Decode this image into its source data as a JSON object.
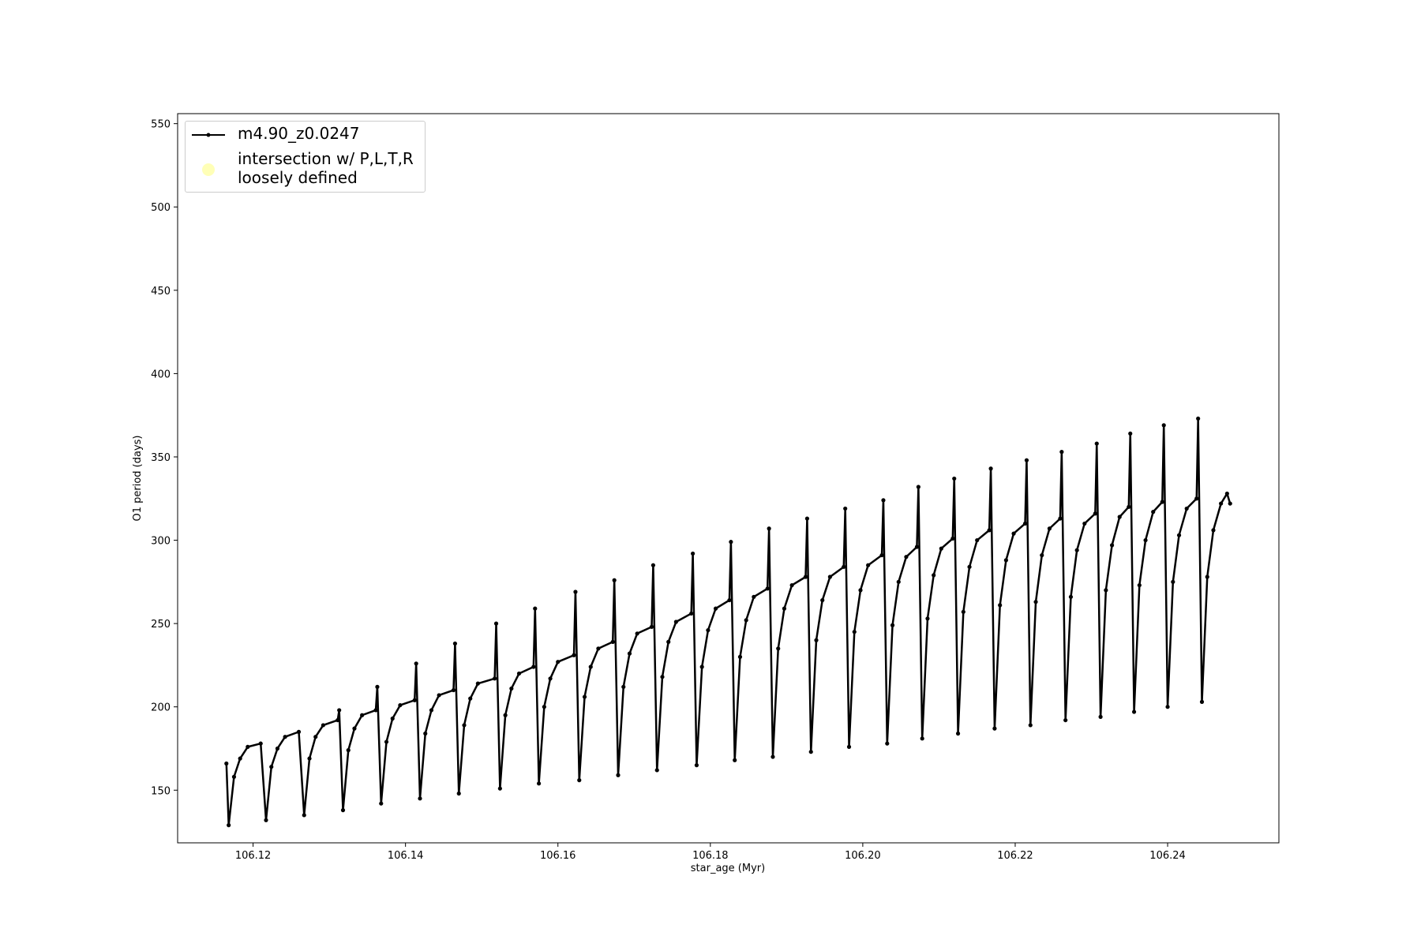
{
  "chart_data": {
    "type": "line",
    "xlabel": "star_age (Myr)",
    "ylabel": "O1 period (days)",
    "xlim": [
      106.1101,
      106.2546
    ],
    "ylim": [
      118.4,
      556
    ],
    "xticks": [
      106.12,
      106.14,
      106.16,
      106.18,
      {
        "value": 106.2,
        "label": "106.20"
      },
      106.22,
      106.24
    ],
    "yticks": [
      150,
      200,
      250,
      300,
      350,
      400,
      450,
      500,
      550
    ],
    "legend": "upper left",
    "series": [
      {
        "name": "m4.90_z0.0247",
        "color": "#000000",
        "x": [
          106.1165,
          106.1168,
          106.1175,
          106.1183,
          106.1193,
          106.121,
          106.1217,
          106.1224,
          106.1232,
          106.1242,
          106.126,
          106.1267,
          106.1274,
          106.1282,
          106.1292,
          106.1311,
          106.1313,
          106.1318,
          106.1325,
          106.1333,
          106.1343,
          106.1361,
          106.1363,
          106.1368,
          106.1375,
          106.1383,
          106.1393,
          106.1412,
          106.1414,
          106.1419,
          106.1426,
          106.1434,
          106.1444,
          106.1463,
          106.1465,
          106.147,
          106.1477,
          106.1485,
          106.1495,
          106.1517,
          106.1519,
          106.1524,
          106.1531,
          106.1539,
          106.1549,
          106.1568,
          106.157,
          106.1575,
          106.1582,
          106.159,
          106.16,
          106.1621,
          106.1623,
          106.1628,
          106.1635,
          106.1643,
          106.1653,
          106.1672,
          106.1674,
          106.1679,
          106.1686,
          106.1694,
          106.1704,
          106.1723,
          106.1725,
          106.173,
          106.1737,
          106.1745,
          106.1755,
          106.1775,
          106.1777,
          106.1782,
          106.1789,
          106.1797,
          106.1807,
          106.1825,
          106.1827,
          106.1832,
          106.1839,
          106.1847,
          106.1857,
          106.1875,
          106.1877,
          106.1882,
          106.1889,
          106.1897,
          106.1907,
          106.1925,
          106.1927,
          106.1932,
          106.1939,
          106.1947,
          106.1957,
          106.1975,
          106.1977,
          106.1982,
          106.1989,
          106.1997,
          106.2007,
          106.2025,
          106.2027,
          106.2032,
          106.2039,
          106.2047,
          106.2057,
          106.2071,
          106.2073,
          106.2078,
          106.2085,
          106.2093,
          106.2103,
          106.2118,
          106.212,
          106.2125,
          106.2132,
          106.214,
          106.215,
          106.2166,
          106.2168,
          106.2173,
          106.218,
          106.2188,
          106.2198,
          106.2213,
          106.2215,
          106.222,
          106.2227,
          106.2235,
          106.2245,
          106.2259,
          106.2261,
          106.2266,
          106.2273,
          106.2281,
          106.2291,
          106.2305,
          106.2307,
          106.2312,
          106.2319,
          106.2327,
          106.2337,
          106.2349,
          106.2351,
          106.2356,
          106.2363,
          106.2371,
          106.2381,
          106.2393,
          106.2395,
          106.24,
          106.2407,
          106.2415,
          106.2425,
          106.2438,
          106.244,
          106.2445,
          106.2452,
          106.246,
          106.247,
          106.2478,
          106.2482
        ],
        "values": [
          166,
          129,
          158,
          169,
          176,
          178,
          132,
          164,
          175,
          182,
          185,
          135,
          169,
          182,
          189,
          192,
          198,
          138,
          174,
          187,
          195,
          198,
          212,
          142,
          179,
          193,
          201,
          204,
          226,
          145,
          184,
          198,
          207,
          210,
          238,
          148,
          189,
          205,
          214,
          217,
          250,
          151,
          195,
          211,
          220,
          224,
          259,
          154,
          200,
          217,
          227,
          231,
          269,
          156,
          206,
          224,
          235,
          239,
          276,
          159,
          212,
          232,
          244,
          248,
          285,
          162,
          218,
          239,
          251,
          256,
          292,
          165,
          224,
          246,
          259,
          264,
          299,
          168,
          230,
          252,
          266,
          271,
          307,
          170,
          235,
          259,
          273,
          278,
          313,
          173,
          240,
          264,
          278,
          284,
          319,
          176,
          245,
          270,
          285,
          291,
          324,
          178,
          249,
          275,
          290,
          296,
          332,
          181,
          253,
          279,
          295,
          301,
          337,
          184,
          257,
          284,
          300,
          306,
          343,
          187,
          261,
          288,
          304,
          310,
          348,
          189,
          263,
          291,
          307,
          313,
          353,
          192,
          266,
          294,
          310,
          316,
          358,
          194,
          270,
          297,
          314,
          320,
          364,
          197,
          273,
          300,
          317,
          323,
          369,
          200,
          275,
          303,
          319,
          325,
          373,
          203,
          278,
          306,
          322,
          328,
          322
        ]
      },
      {
        "name": "intersection w/ P,L,T,R\nloosely defined",
        "color": "#ffff99",
        "x": [],
        "values": []
      }
    ]
  }
}
